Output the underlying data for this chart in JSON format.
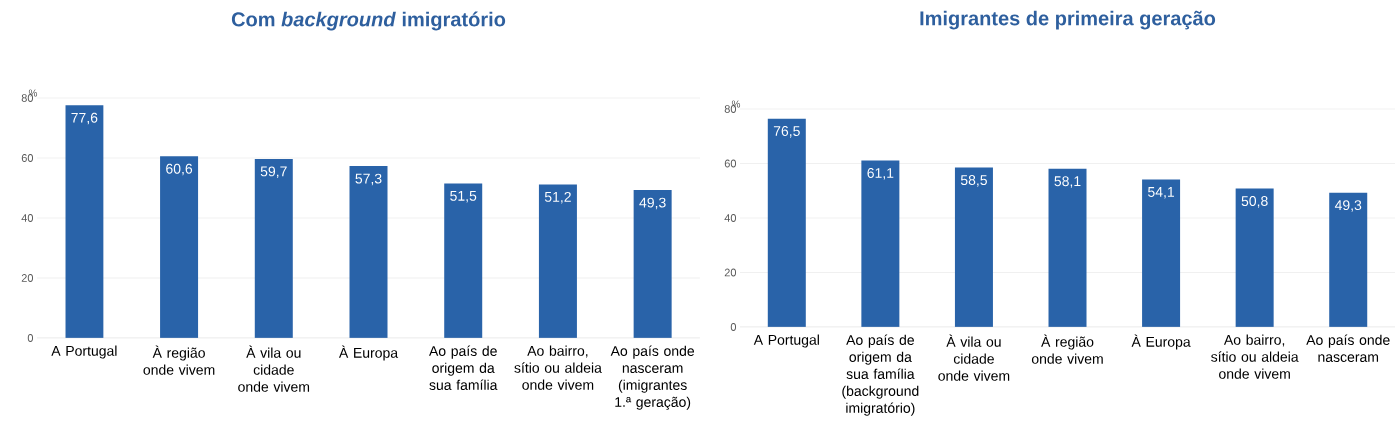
{
  "chart_data": [
    {
      "type": "bar",
      "title": "Com *background* imigratório",
      "ylabel": "%",
      "categories": [
        "A Portugal",
        "À região onde vivem",
        "À vila ou cidade onde vivem",
        "À Europa",
        "Ao país de origem da sua família",
        "Ao bairro, sítio ou aldeia onde vivem",
        "Ao país onde nasceram (imigrantes 1.ª geração)"
      ],
      "values": [
        77.6,
        60.6,
        59.7,
        57.3,
        51.5,
        51.2,
        49.3
      ],
      "value_labels": [
        "77,6",
        "60,6",
        "59,7",
        "57,3",
        "51,5",
        "51,2",
        "49,3"
      ],
      "color": "#2963a9",
      "ylim": [
        0,
        80
      ],
      "yticks": [
        0,
        20,
        40,
        60,
        80
      ],
      "grid": "y"
    },
    {
      "type": "bar",
      "title": "Imigrantes de primeira geração",
      "ylabel": "%",
      "categories": [
        "A Portugal",
        "Ao país de origem da sua família (background imigratório)",
        "À vila ou cidade onde vivem",
        "À região onde vivem",
        "À Europa",
        "Ao bairro, sítio ou aldeia onde vivem",
        "Ao país onde nasceram"
      ],
      "values": [
        76.5,
        61.1,
        58.5,
        58.1,
        54.1,
        50.8,
        49.3
      ],
      "value_labels": [
        "76,5",
        "61,1",
        "58,5",
        "58,1",
        "54,1",
        "50,8",
        "49,3"
      ],
      "color": "#2963a9",
      "ylim": [
        0,
        80
      ],
      "yticks": [
        0,
        20,
        40,
        60,
        80
      ],
      "grid": "y"
    }
  ]
}
